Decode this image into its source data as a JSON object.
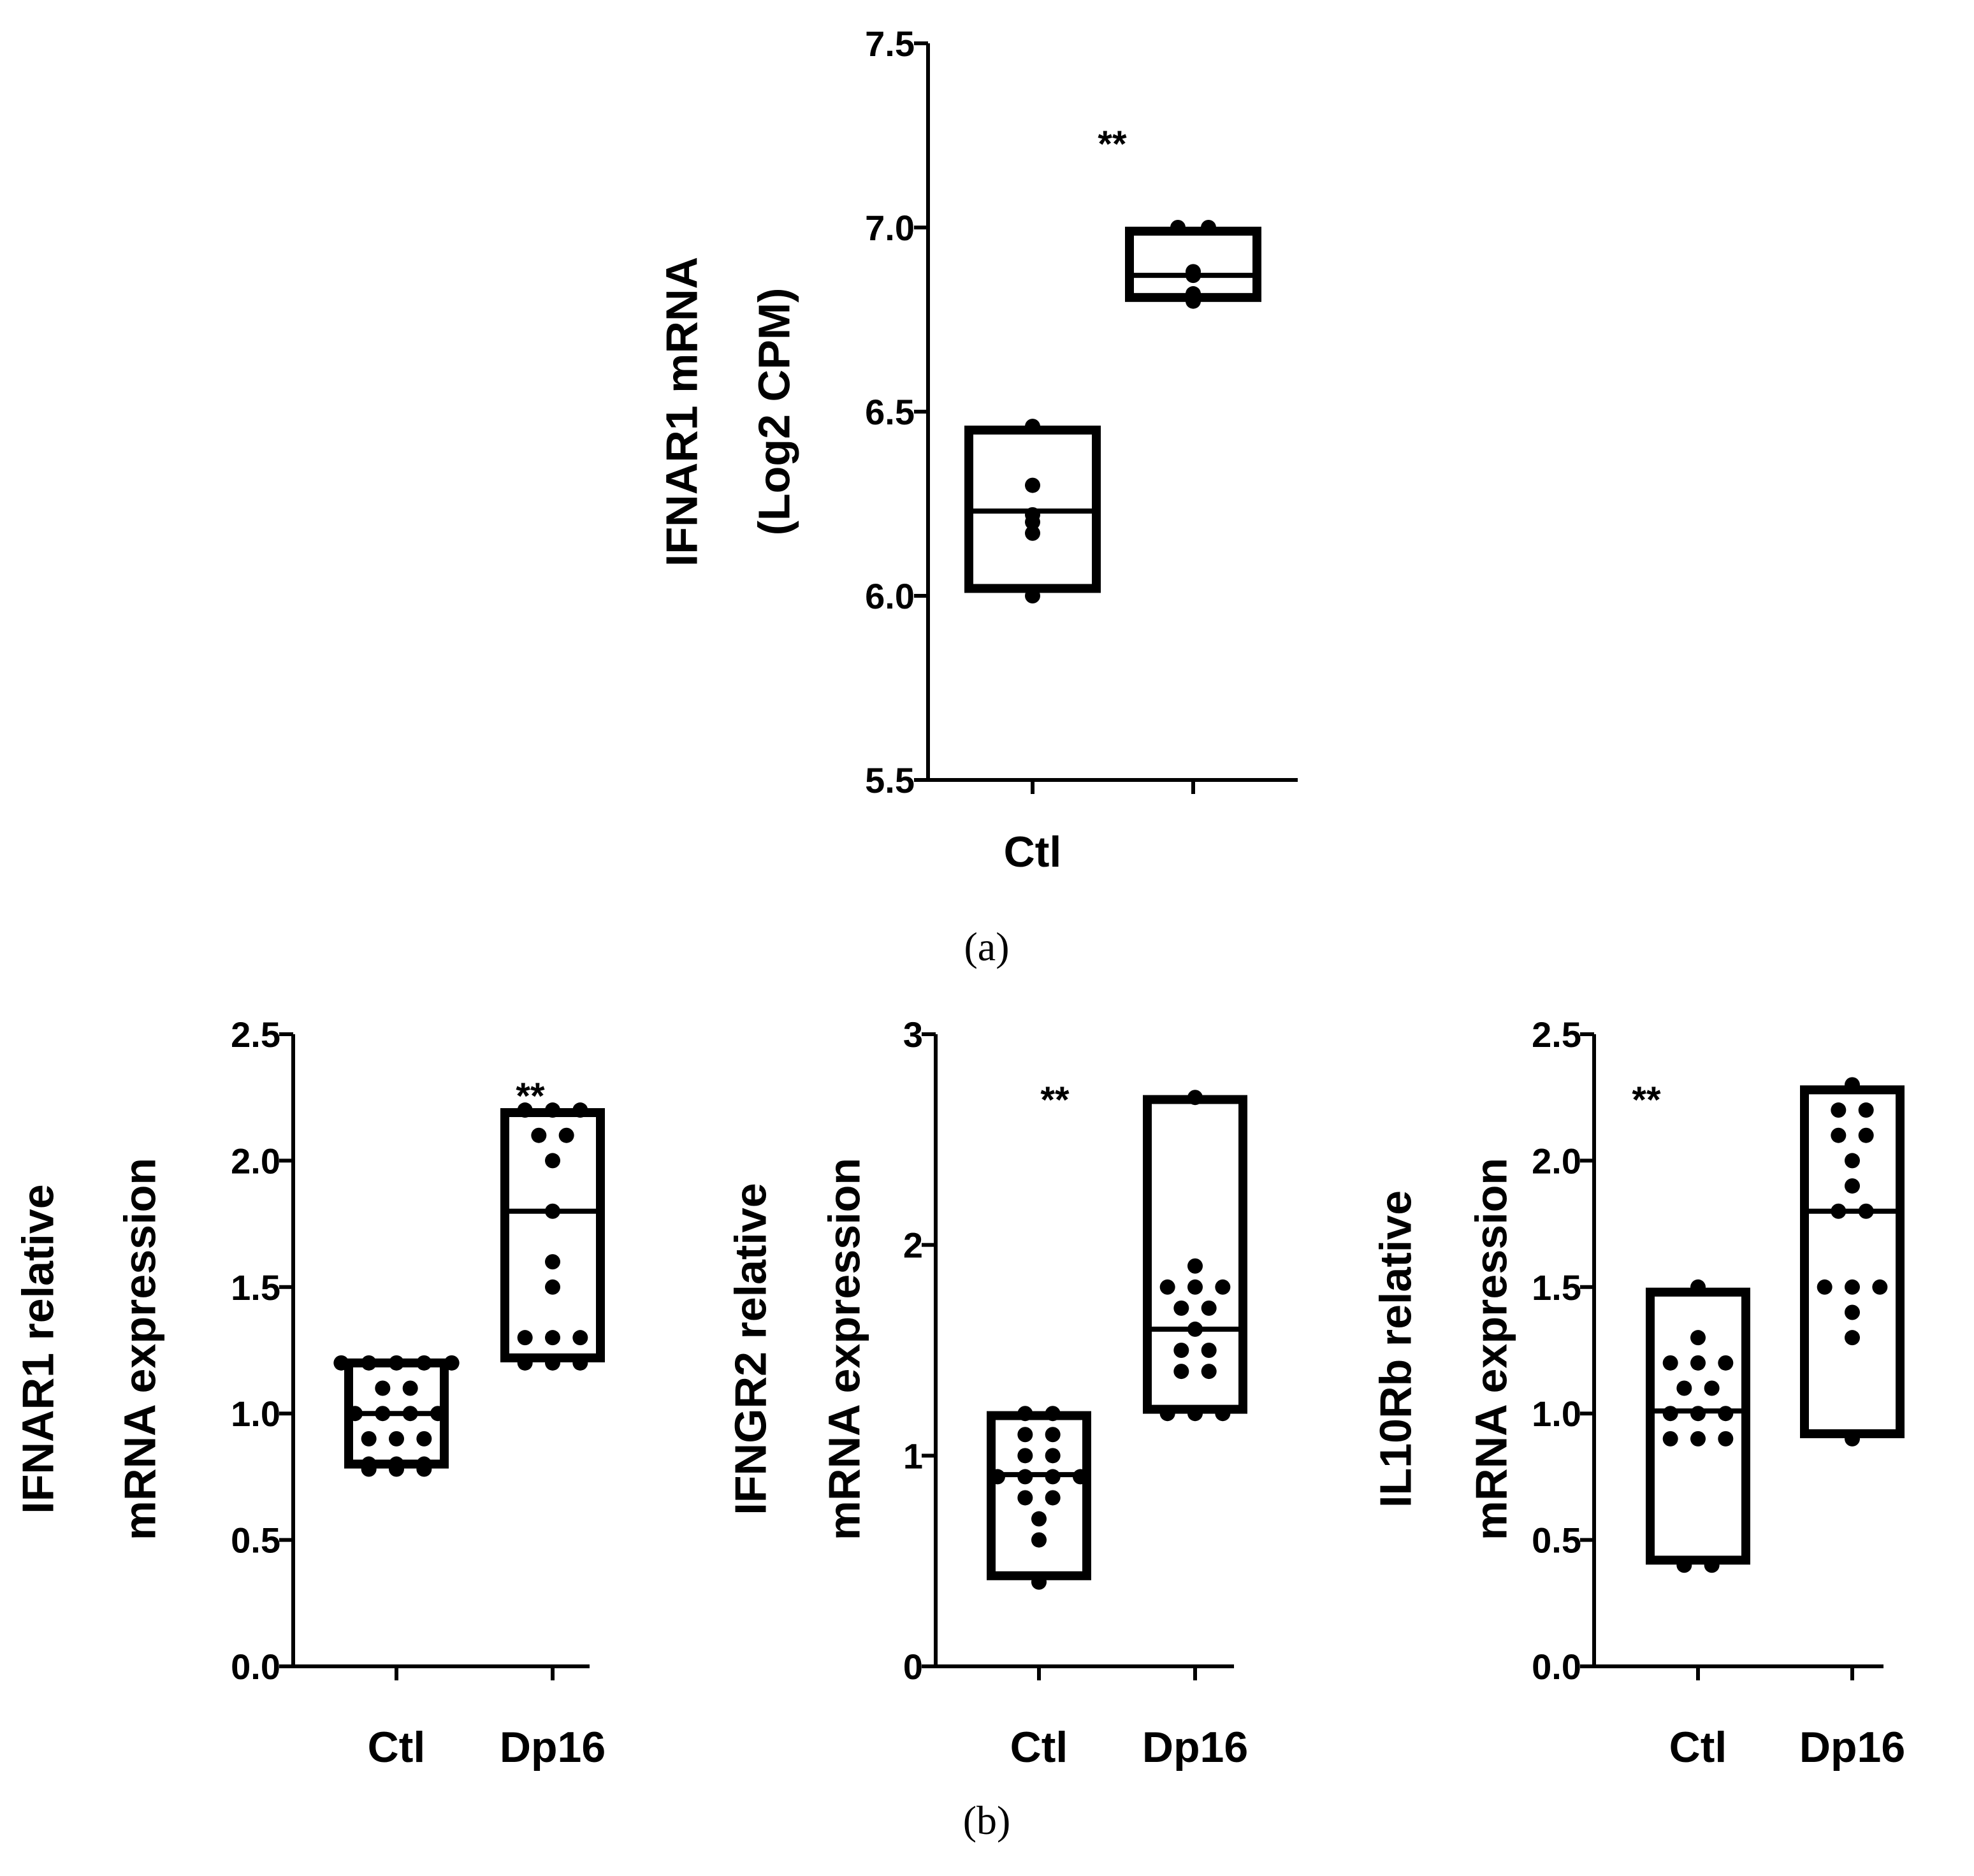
{
  "chart_data": [
    {
      "id": "a",
      "type": "box",
      "ylabel": [
        "IFNAR1 mRNA",
        "(Log2 CPM)"
      ],
      "ylim": [
        5.5,
        7.5
      ],
      "yticks": [
        5.5,
        6.0,
        6.5,
        7.0,
        7.5
      ],
      "ytick_labels": [
        "5.5",
        "6.0",
        "6.5",
        "7.0",
        "7.5"
      ],
      "categories": [
        "Ctl",
        ""
      ],
      "significance": "**",
      "groups": [
        {
          "min": 6.02,
          "max": 6.45,
          "median": 6.23,
          "points": [
            6.0,
            6.17,
            6.2,
            6.22,
            6.3,
            6.46
          ]
        },
        {
          "min": 6.81,
          "max": 6.99,
          "median": 6.87,
          "points": [
            6.8,
            6.82,
            6.87,
            6.88,
            7.0,
            7.0
          ]
        }
      ]
    },
    {
      "id": "b1",
      "type": "box",
      "ylabel": [
        "IFNAR1 relative",
        "mRNA expression"
      ],
      "ylim": [
        0,
        2.5
      ],
      "yticks": [
        0,
        0.5,
        1.0,
        1.5,
        2.0,
        2.5
      ],
      "ytick_labels": [
        "0.0",
        "0.5",
        "1.0",
        "1.5",
        "2.0",
        "2.5"
      ],
      "categories": [
        "Ctl",
        "Dp16"
      ],
      "significance": "**",
      "groups": [
        {
          "min": 0.8,
          "max": 1.2,
          "median": 1.0,
          "points": [
            0.78,
            0.78,
            0.78,
            0.8,
            0.8,
            0.8,
            0.9,
            0.9,
            0.9,
            1.0,
            1.0,
            1.0,
            1.0,
            1.1,
            1.1,
            1.2,
            1.2,
            1.2,
            1.2,
            1.2
          ]
        },
        {
          "min": 1.22,
          "max": 2.19,
          "median": 1.8,
          "points": [
            1.2,
            1.2,
            1.2,
            1.3,
            1.3,
            1.3,
            1.5,
            1.6,
            1.8,
            2.0,
            2.1,
            2.1,
            2.2,
            2.2,
            2.2
          ]
        }
      ]
    },
    {
      "id": "b2",
      "type": "box",
      "ylabel": [
        "IFNGR2 relative",
        "mRNA expression"
      ],
      "ylim": [
        0,
        3
      ],
      "yticks": [
        0,
        1,
        2,
        3
      ],
      "ytick_labels": [
        "0",
        "1",
        "2",
        "3"
      ],
      "categories": [
        "Ctl",
        "Dp16"
      ],
      "significance": "**",
      "groups": [
        {
          "min": 0.43,
          "max": 1.19,
          "median": 0.91,
          "points": [
            0.4,
            0.6,
            0.7,
            0.8,
            0.8,
            0.9,
            0.9,
            0.9,
            0.9,
            1.0,
            1.0,
            1.1,
            1.1,
            1.2,
            1.2
          ]
        },
        {
          "min": 1.22,
          "max": 2.69,
          "median": 1.6,
          "points": [
            1.2,
            1.2,
            1.2,
            1.4,
            1.4,
            1.5,
            1.5,
            1.6,
            1.7,
            1.7,
            1.8,
            1.8,
            1.8,
            1.9,
            2.7
          ]
        }
      ]
    },
    {
      "id": "b3",
      "type": "box",
      "ylabel": [
        "IL10Rb relative",
        "mRNA expression"
      ],
      "ylim": [
        0,
        2.5
      ],
      "yticks": [
        0,
        0.5,
        1.0,
        1.5,
        2.0,
        2.5
      ],
      "ytick_labels": [
        "0.0",
        "0.5",
        "1.0",
        "1.5",
        "2.0",
        "2.5"
      ],
      "categories": [
        "Ctl",
        "Dp16"
      ],
      "significance": "**",
      "groups": [
        {
          "min": 0.42,
          "max": 1.48,
          "median": 1.01,
          "points": [
            0.4,
            0.4,
            0.9,
            0.9,
            0.9,
            1.0,
            1.0,
            1.0,
            1.1,
            1.1,
            1.2,
            1.2,
            1.2,
            1.3,
            1.5
          ]
        },
        {
          "min": 0.92,
          "max": 2.28,
          "median": 1.8,
          "points": [
            0.9,
            1.3,
            1.4,
            1.5,
            1.5,
            1.5,
            1.8,
            1.8,
            1.9,
            2.0,
            2.1,
            2.1,
            2.2,
            2.2,
            2.3
          ]
        }
      ]
    }
  ],
  "panel_labels": {
    "a": "(a)",
    "b": "(b)"
  }
}
